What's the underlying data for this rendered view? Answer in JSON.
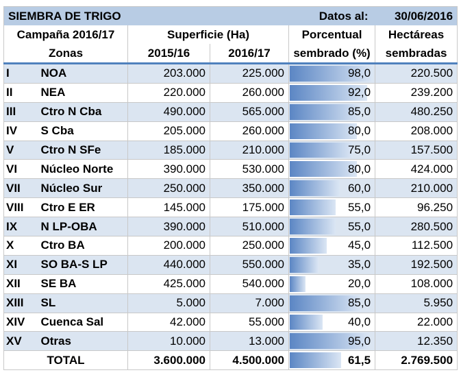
{
  "title": "SIEMBRA DE TRIGO",
  "datos_label": "Datos al:",
  "date": "30/06/2016",
  "headers": {
    "campaign": "Campaña 2016/17",
    "surface": "Superficie (Ha)",
    "percent_line1": "Porcentual",
    "percent_line2": "sembrado (%)",
    "hectares_line1": "Hectáreas",
    "hectares_line2": "sembradas",
    "zones": "Zonas",
    "year1": "2015/16",
    "year2": "2016/17"
  },
  "rows": [
    {
      "num": "I",
      "zone": "NOA",
      "s2015": "203.000",
      "s2016": "225.000",
      "pct": "98,0",
      "pct_value": 98,
      "ha": "220.500"
    },
    {
      "num": "II",
      "zone": "NEA",
      "s2015": "220.000",
      "s2016": "260.000",
      "pct": "92,0",
      "pct_value": 92,
      "ha": "239.200"
    },
    {
      "num": "III",
      "zone": "Ctro N Cba",
      "s2015": "490.000",
      "s2016": "565.000",
      "pct": "85,0",
      "pct_value": 85,
      "ha": "480.250"
    },
    {
      "num": "IV",
      "zone": "S Cba",
      "s2015": "205.000",
      "s2016": "260.000",
      "pct": "80,0",
      "pct_value": 80,
      "ha": "208.000"
    },
    {
      "num": "V",
      "zone": "Ctro N SFe",
      "s2015": "185.000",
      "s2016": "210.000",
      "pct": "75,0",
      "pct_value": 75,
      "ha": "157.500"
    },
    {
      "num": "VI",
      "zone": "Núcleo Norte",
      "s2015": "390.000",
      "s2016": "530.000",
      "pct": "80,0",
      "pct_value": 80,
      "ha": "424.000"
    },
    {
      "num": "VII",
      "zone": "Núcleo Sur",
      "s2015": "250.000",
      "s2016": "350.000",
      "pct": "60,0",
      "pct_value": 60,
      "ha": "210.000"
    },
    {
      "num": "VIII",
      "zone": "Ctro E ER",
      "s2015": "145.000",
      "s2016": "175.000",
      "pct": "55,0",
      "pct_value": 55,
      "ha": "96.250"
    },
    {
      "num": "IX",
      "zone": "N LP-OBA",
      "s2015": "390.000",
      "s2016": "510.000",
      "pct": "55,0",
      "pct_value": 55,
      "ha": "280.500"
    },
    {
      "num": "X",
      "zone": "Ctro BA",
      "s2015": "200.000",
      "s2016": "250.000",
      "pct": "45,0",
      "pct_value": 45,
      "ha": "112.500"
    },
    {
      "num": "XI",
      "zone": "SO BA-S LP",
      "s2015": "440.000",
      "s2016": "550.000",
      "pct": "35,0",
      "pct_value": 35,
      "ha": "192.500"
    },
    {
      "num": "XII",
      "zone": "SE BA",
      "s2015": "425.000",
      "s2016": "540.000",
      "pct": "20,0",
      "pct_value": 20,
      "ha": "108.000"
    },
    {
      "num": "XIII",
      "zone": "SL",
      "s2015": "5.000",
      "s2016": "7.000",
      "pct": "85,0",
      "pct_value": 85,
      "ha": "5.950"
    },
    {
      "num": "XIV",
      "zone": "Cuenca Sal",
      "s2015": "42.000",
      "s2016": "55.000",
      "pct": "40,0",
      "pct_value": 40,
      "ha": "22.000"
    },
    {
      "num": "XV",
      "zone": "Otras",
      "s2015": "10.000",
      "s2016": "13.000",
      "pct": "95,0",
      "pct_value": 95,
      "ha": "12.350"
    }
  ],
  "total": {
    "label": "TOTAL",
    "s2015": "3.600.000",
    "s2016": "4.500.000",
    "pct": "61,5",
    "pct_value": 61.5,
    "ha": "2.769.500"
  },
  "colors": {
    "header_bg": "#b8cce4",
    "alt_row_bg": "#dbe5f1",
    "bar_start": "#5b86c4",
    "bar_end": "#dbe6f4",
    "accent_line": "#4f81bd"
  }
}
